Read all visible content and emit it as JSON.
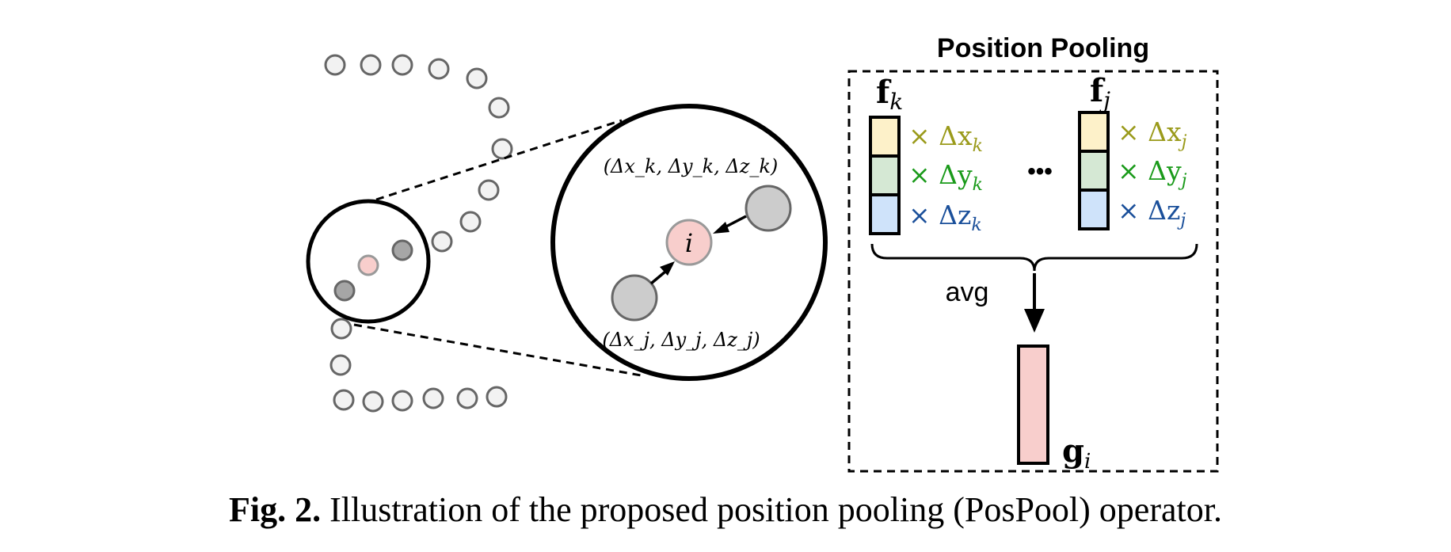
{
  "diagram": {
    "title": "Position Pooling",
    "zoom_label_k": "(Δx_k, Δy_k, Δz_k)",
    "zoom_label_j": "(Δx_j, Δy_j, Δz_j)",
    "center_point_label": "i",
    "feature_k": {
      "label": "f",
      "subscript": "k",
      "terms": [
        {
          "text": "× Δx",
          "sub": "k",
          "color": "#9a9a1a"
        },
        {
          "text": "× Δy",
          "sub": "k",
          "color": "#1a9a1a"
        },
        {
          "text": "× Δz",
          "sub": "k",
          "color": "#1a4f9a"
        }
      ]
    },
    "feature_j": {
      "label": "f",
      "subscript": "j",
      "terms": [
        {
          "text": "× Δx",
          "sub": "j",
          "color": "#9a9a1a"
        },
        {
          "text": "× Δy",
          "sub": "j",
          "color": "#1a9a1a"
        },
        {
          "text": "× Δz",
          "sub": "j",
          "color": "#1a4f9a"
        }
      ]
    },
    "ellipsis": "•••",
    "avg_label": "avg",
    "output": {
      "label": "g",
      "subscript": "i"
    }
  },
  "caption": {
    "bold_prefix": "Fig. 2.",
    "text": " Illustration of the proposed position pooling (PosPool) operator."
  },
  "colors": {
    "cell_x": "#fdf1c9",
    "cell_y": "#d5e8d4",
    "cell_z": "#cfe3fa",
    "output_fill": "#f8cecc",
    "center_fill": "#f8cecc",
    "neighbor_fill": "#cccccc",
    "point_fill": "#f2f2f2"
  }
}
